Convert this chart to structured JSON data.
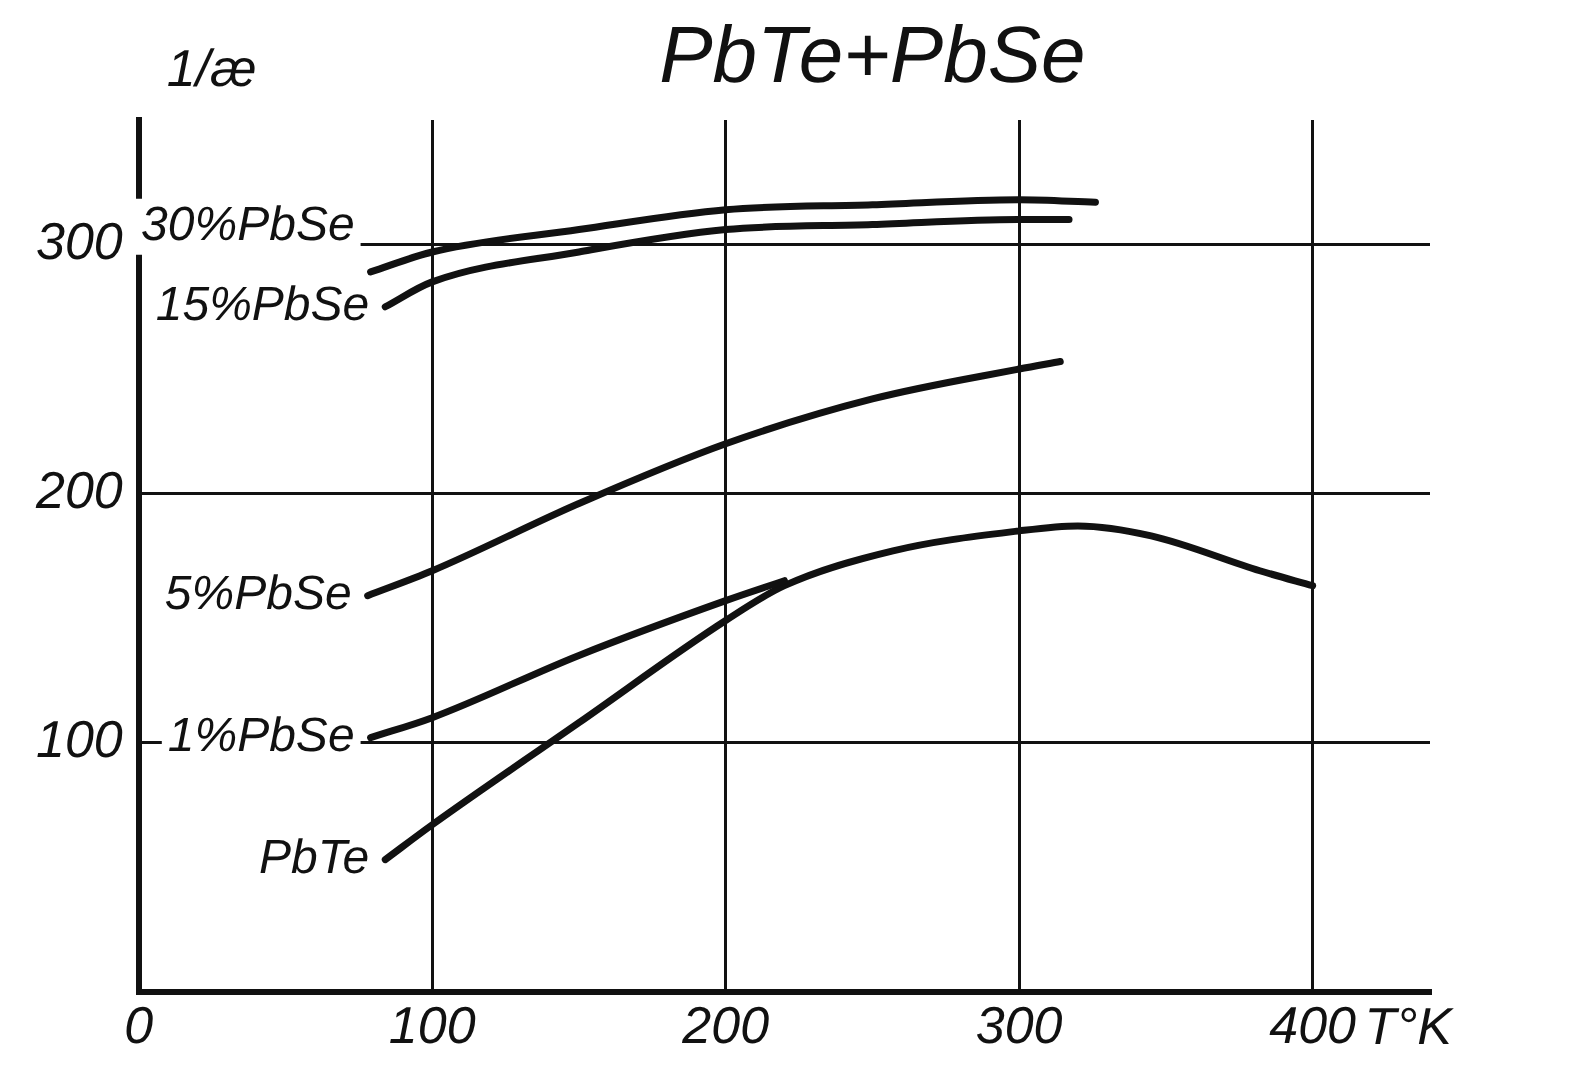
{
  "chart_data": {
    "type": "line",
    "title": "PbTe+PbSe",
    "xlabel": "T°K",
    "ylabel": "1/æ",
    "xlim": [
      0,
      440
    ],
    "ylim": [
      0,
      350
    ],
    "xticks": [
      0,
      100,
      200,
      300,
      400
    ],
    "yticks": [
      100,
      200,
      300
    ],
    "grid": true,
    "legend": false,
    "marker": "none",
    "line_style": "solid",
    "series": [
      {
        "name": "30%PbSe",
        "color": "#111111",
        "x": [
          79,
          100,
          150,
          200,
          250,
          300,
          326
        ],
        "values": [
          289,
          297,
          306,
          314,
          316,
          318,
          317
        ]
      },
      {
        "name": "15%PbSe",
        "color": "#111111",
        "x": [
          84,
          100,
          150,
          200,
          250,
          300,
          317
        ],
        "values": [
          275,
          285,
          297,
          306,
          308,
          310,
          310
        ]
      },
      {
        "name": "5%PbSe",
        "color": "#111111",
        "x": [
          78,
          100,
          150,
          200,
          250,
          300,
          314
        ],
        "values": [
          159,
          169,
          196,
          220,
          238,
          250,
          253
        ]
      },
      {
        "name": "1%PbSe",
        "color": "#111111",
        "x": [
          79,
          100,
          150,
          200,
          220
        ],
        "values": [
          102,
          110,
          135,
          157,
          165
        ]
      },
      {
        "name": "PbTe",
        "color": "#111111",
        "x": [
          84,
          100,
          150,
          200,
          220,
          257,
          300,
          320,
          345,
          382,
          400
        ],
        "values": [
          53,
          67,
          108,
          149,
          163,
          177,
          185,
          187,
          183,
          169,
          163
        ]
      }
    ]
  }
}
